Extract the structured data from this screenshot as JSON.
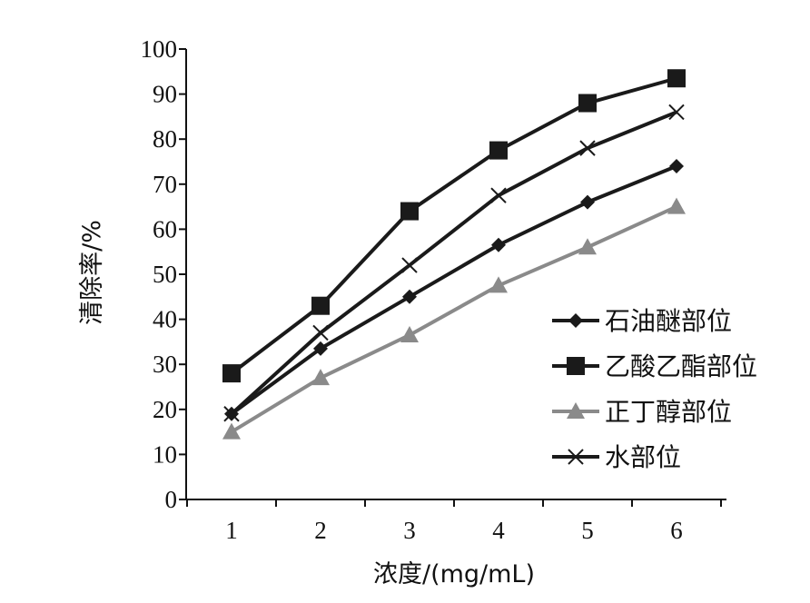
{
  "chart_data": {
    "type": "line",
    "x": [
      1,
      2,
      3,
      4,
      5,
      6
    ],
    "xlabel": "浓度/(mg/mL)",
    "ylabel": "清除率/%",
    "ylim": [
      0,
      100
    ],
    "yticks": [
      0,
      10,
      20,
      30,
      40,
      50,
      60,
      70,
      80,
      90,
      100
    ],
    "xticks": [
      "1",
      "2",
      "3",
      "4",
      "5",
      "6"
    ],
    "legend_position": "right",
    "grid": false,
    "series": [
      {
        "name": "石油醚部位",
        "values": [
          19,
          33.5,
          45,
          56.5,
          66,
          74
        ],
        "marker": "diamond",
        "color": "#1a1a1a"
      },
      {
        "name": "乙酸乙酯部位",
        "values": [
          28,
          43,
          64,
          77.5,
          88,
          93.5
        ],
        "marker": "square",
        "color": "#1a1a1a"
      },
      {
        "name": "正丁醇部位",
        "values": [
          15,
          27,
          36.5,
          47.5,
          56,
          65
        ],
        "marker": "triangle",
        "color": "#8a8a8a"
      },
      {
        "name": "水部位",
        "values": [
          19,
          37,
          52,
          67.5,
          78,
          86
        ],
        "marker": "x",
        "color": "#1a1a1a"
      }
    ]
  }
}
